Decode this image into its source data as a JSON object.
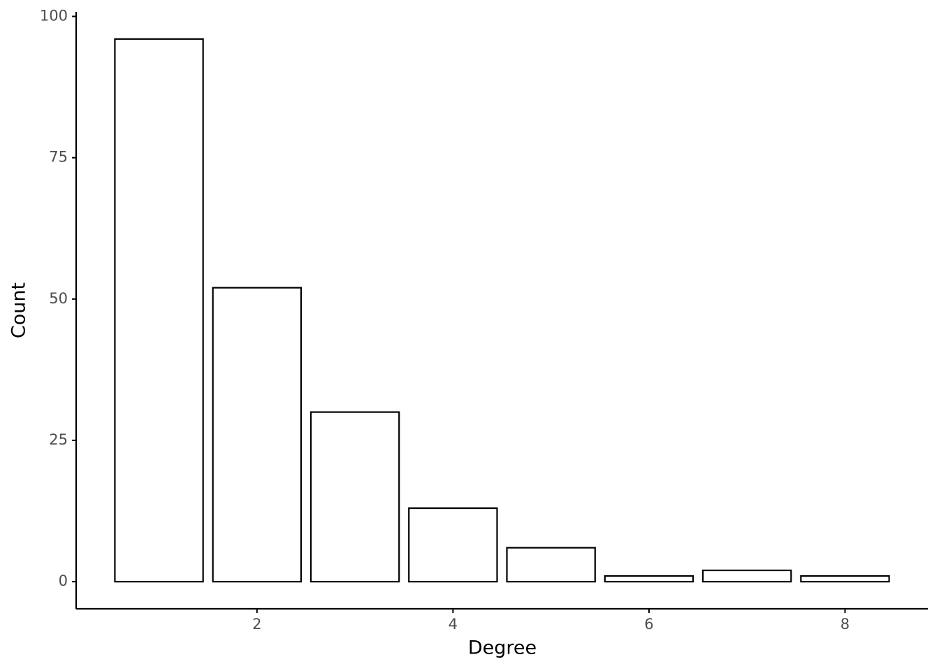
{
  "chart_data": {
    "type": "bar",
    "xlabel": "Degree",
    "ylabel": "Count",
    "x": [
      1,
      2,
      3,
      4,
      5,
      6,
      7,
      8
    ],
    "values": [
      96,
      52,
      30,
      13,
      6,
      1,
      2,
      1
    ],
    "color": "#ffffff",
    "edgecolor": "#000000",
    "xlim": [
      0.155,
      8.845
    ],
    "xticks": [
      2,
      4,
      6,
      8
    ],
    "ylim": [
      -4.8,
      100.8
    ],
    "yticks": [
      0,
      25,
      50,
      75,
      100
    ],
    "grid": false
  }
}
